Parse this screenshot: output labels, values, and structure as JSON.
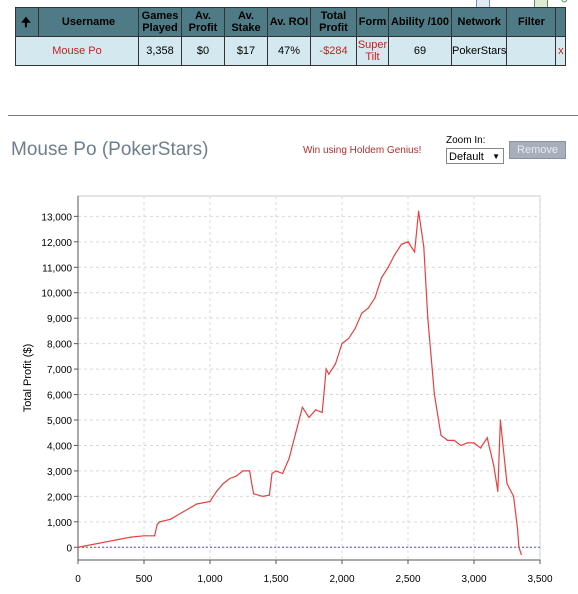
{
  "table": {
    "headers": [
      "",
      "Username",
      "Games Played",
      "Av. Profit",
      "Av. Stake",
      "Av. ROI",
      "Total Profit",
      "Form",
      "Ability /100",
      "Network",
      "Filter",
      ""
    ],
    "headers_lines": {
      "games": [
        "Games",
        "Played"
      ],
      "avprofit": [
        "Av.",
        "Profit"
      ],
      "avstake": [
        "Av.",
        "Stake"
      ],
      "total": [
        "Total",
        "Profit"
      ]
    },
    "row": {
      "username": "Mouse Po",
      "games_played": "3,358",
      "av_profit": "$0",
      "av_stake": "$17",
      "av_roi": "47%",
      "total_profit": "-$284",
      "form_line1": "Super",
      "form_line2": "Tilt",
      "ability": "69",
      "network": "PokerStars",
      "filter": "",
      "remove": "x"
    }
  },
  "panel": {
    "title": "Mouse Po (PokerStars)",
    "promo": "Win using Holdem Genius!",
    "zoom_label": "Zoom In:",
    "zoom_value": "Default",
    "remove_label": "Remove"
  },
  "colors": {
    "header_bg": "#4e7b85",
    "row_bg": "#d4e9ef",
    "line": "#e84040",
    "zero_line": "#4a5ad0"
  },
  "chart_data": {
    "type": "line",
    "title": "",
    "xlabel": "",
    "ylabel": "Total Profit ($)",
    "xlim": [
      0,
      3500
    ],
    "ylim": [
      -500,
      13800
    ],
    "xticks": [
      0,
      500,
      1000,
      1500,
      2000,
      2500,
      3000,
      3500
    ],
    "xtick_labels": [
      "0",
      "500",
      "1,000",
      "1,500",
      "2,000",
      "2,500",
      "3,000",
      "3,500"
    ],
    "yticks": [
      0,
      1000,
      2000,
      3000,
      4000,
      5000,
      6000,
      7000,
      8000,
      9000,
      10000,
      11000,
      12000,
      13000
    ],
    "ytick_labels": [
      "0",
      "1,000",
      "2,000",
      "3,000",
      "4,000",
      "5,000",
      "6,000",
      "7,000",
      "8,000",
      "9,000",
      "10,000",
      "11,000",
      "12,000",
      "13,000"
    ],
    "grid": true,
    "series": [
      {
        "x": [
          0,
          50,
          100,
          150,
          200,
          300,
          400,
          500,
          580,
          600,
          620,
          700,
          800,
          900,
          1000,
          1050,
          1100,
          1150,
          1200,
          1250,
          1300,
          1320,
          1330,
          1400,
          1450,
          1470,
          1500,
          1550,
          1600,
          1620,
          1650,
          1700,
          1750,
          1800,
          1850,
          1880,
          1900,
          1950,
          2000,
          2050,
          2100,
          2150,
          2200,
          2250,
          2300,
          2350,
          2400,
          2450,
          2500,
          2550,
          2580,
          2600,
          2620,
          2650,
          2700,
          2750,
          2800,
          2850,
          2900,
          2950,
          3000,
          3050,
          3100,
          3150,
          3180,
          3200,
          3220,
          3250,
          3300,
          3330,
          3340,
          3358
        ],
        "y": [
          0,
          50,
          100,
          150,
          200,
          300,
          400,
          450,
          450,
          900,
          1000,
          1100,
          1400,
          1700,
          1800,
          2200,
          2500,
          2700,
          2800,
          3000,
          3000,
          2400,
          2100,
          2000,
          2050,
          2900,
          3000,
          2900,
          3500,
          3900,
          4500,
          5500,
          5100,
          5400,
          5300,
          7000,
          6800,
          7200,
          8000,
          8200,
          8600,
          9200,
          9400,
          9800,
          10600,
          11000,
          11500,
          11900,
          12000,
          11600,
          13200,
          12500,
          11800,
          9000,
          6000,
          4400,
          4200,
          4200,
          4000,
          4100,
          4100,
          3900,
          4300,
          3200,
          2200,
          5000,
          4000,
          2500,
          2000,
          700,
          0,
          -284
        ]
      }
    ]
  }
}
